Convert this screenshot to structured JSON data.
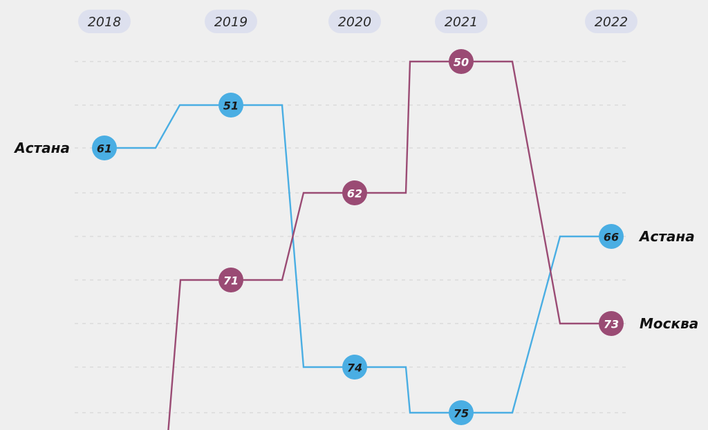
{
  "chart_data": {
    "type": "line",
    "title": "",
    "x": [
      "2018",
      "2019",
      "2020",
      "2021",
      "2022"
    ],
    "y_axis": "rank",
    "y_reversed": true,
    "grid": "horizontal-dashed",
    "series": [
      {
        "name": "Астана",
        "color": "#4aaee3",
        "text_color": "#1a1a1a",
        "values": [
          61,
          51,
          74,
          75,
          66
        ],
        "start_label": "Астана",
        "end_label": "Астана"
      },
      {
        "name": "Москва",
        "color": "#9a4b74",
        "text_color": "#ffffff",
        "values": [
          null,
          71,
          62,
          50,
          73
        ],
        "start_label": "",
        "end_label": "Москва"
      }
    ]
  }
}
